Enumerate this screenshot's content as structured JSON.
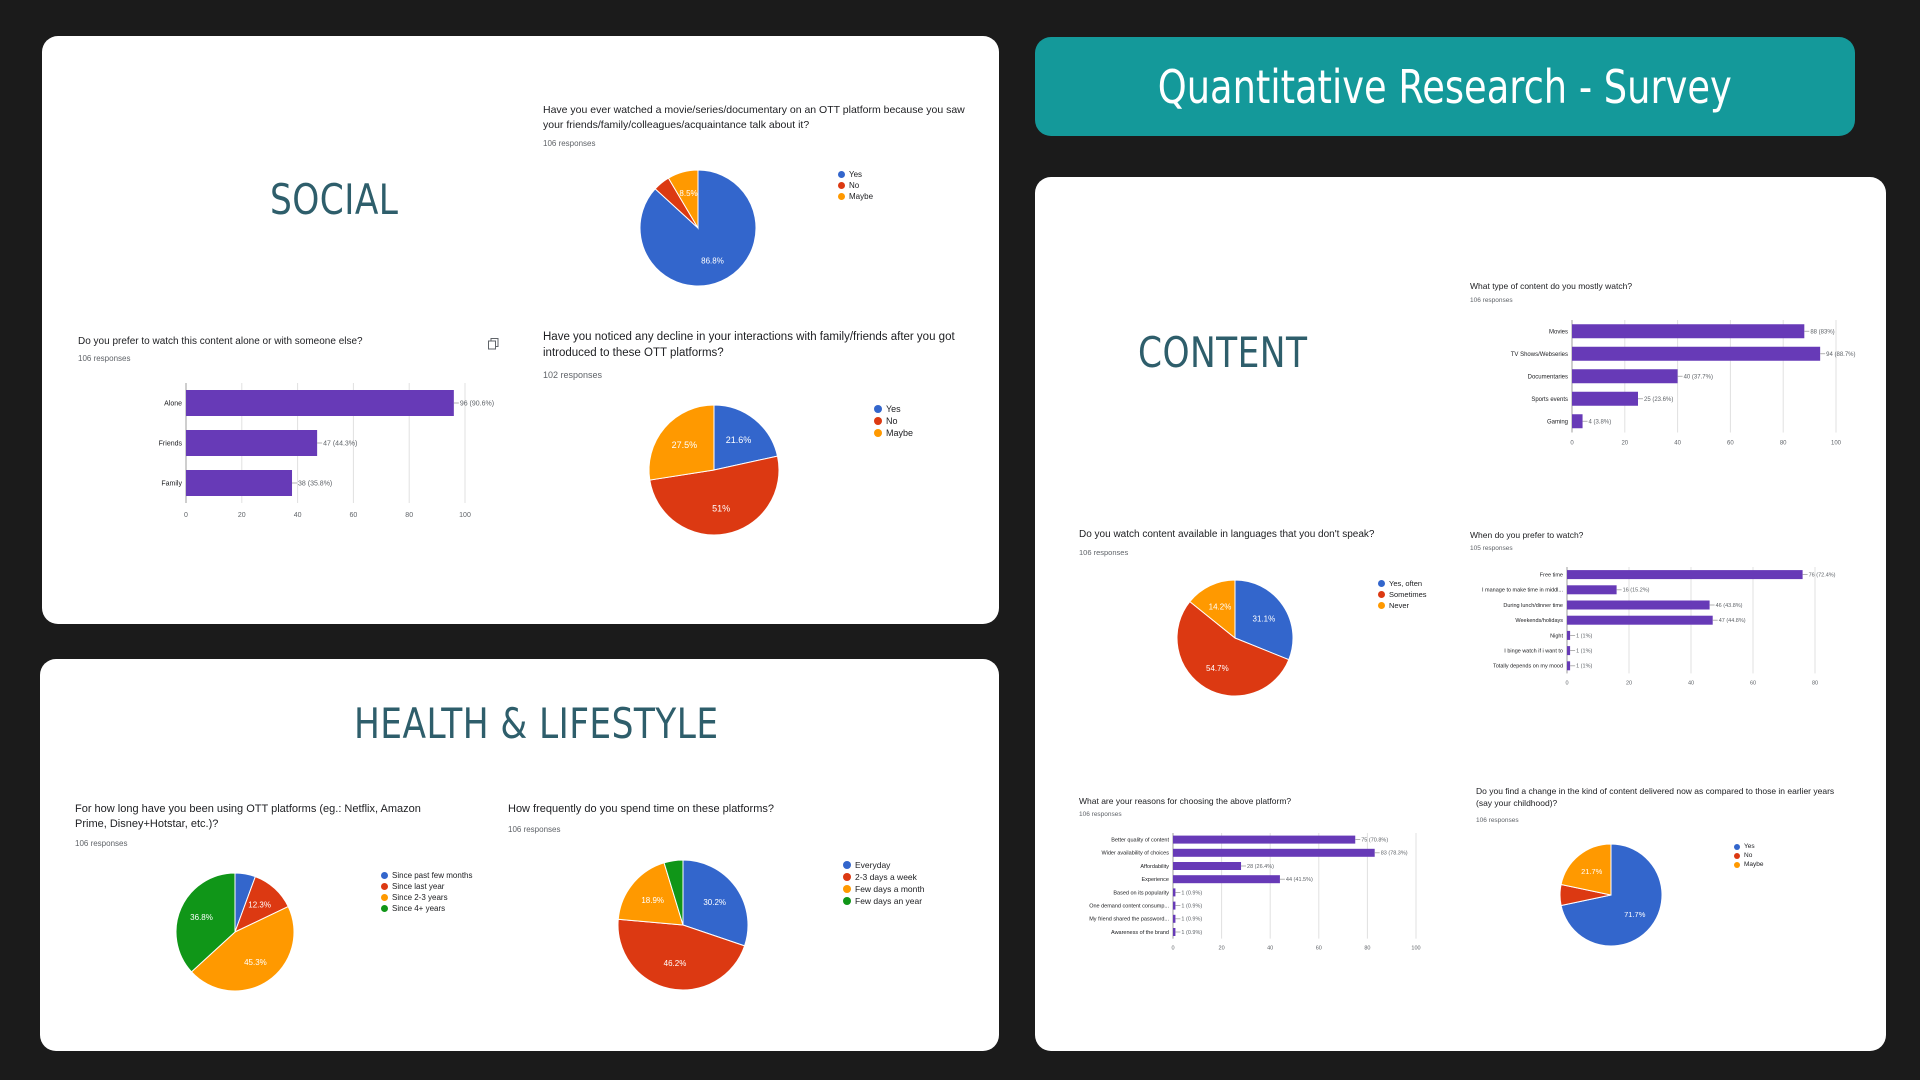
{
  "banner": {
    "title": "Quantitative Research - Survey",
    "color": "#14999a"
  },
  "sections": {
    "social": "SOCIAL",
    "health": "HEALTH & LIFESTYLE",
    "content": "CONTENT"
  },
  "colors": {
    "blue": "#3366cc",
    "red": "#dc3912",
    "orange": "#ff9900",
    "green": "#109618",
    "purple": "#673ab7",
    "title": "#2e5e6b"
  },
  "icons": {
    "copy": "copy-icon"
  },
  "questions": {
    "q1": {
      "text": "Have you ever watched a movie/series/documentary on an OTT platform because you saw your friends/family/colleagues/acquaintance talk about it?",
      "responses": "106 responses"
    },
    "q2": {
      "text": "Do you prefer to watch this content alone or with someone else?",
      "responses": "106 responses"
    },
    "q3": {
      "text": "Have you noticed any decline in your interactions with family/friends after you got introduced to these OTT platforms?",
      "responses": "102 responses"
    },
    "q4": {
      "text": "For how long have you been using OTT platforms (eg.: Netflix, Amazon Prime, Disney+Hotstar, etc.)?",
      "responses": "106 responses"
    },
    "q5": {
      "text": "How frequently do you spend time on these platforms?",
      "responses": "106 responses"
    },
    "q6": {
      "text": "What type of content do you mostly watch?",
      "responses": "106 responses"
    },
    "q7": {
      "text": "Do you watch content available in languages that you don't speak?",
      "responses": "106 responses"
    },
    "q8": {
      "text": "When do you prefer to watch?",
      "responses": "105 responses"
    },
    "q9": {
      "text": "What are your reasons for choosing the above platform?",
      "responses": "106 responses"
    },
    "q10": {
      "text": "Do you find a change in the kind of content delivered now as compared to those in earlier years (say your childhood)?",
      "responses": "106 responses"
    }
  },
  "chart_data": [
    {
      "id": "q1",
      "type": "pie",
      "title": "Have you ever watched a movie/series/documentary on an OTT platform because you saw your friends/family/colleagues/acquaintance talk about it?",
      "labels": [
        "Yes",
        "No",
        "Maybe"
      ],
      "values": [
        86.8,
        4.7,
        8.5
      ],
      "data_labels": [
        "86.8%",
        "",
        "8.5%"
      ],
      "colors": [
        "#3366cc",
        "#dc3912",
        "#ff9900"
      ]
    },
    {
      "id": "q2",
      "type": "bar",
      "orientation": "horizontal",
      "title": "Do you prefer to watch this content alone or with someone else?",
      "categories": [
        "Alone",
        "Friends",
        "Family"
      ],
      "values": [
        96,
        47,
        38
      ],
      "data_labels": [
        "96 (90.6%)",
        "47 (44.3%)",
        "38 (35.8%)"
      ],
      "xlim": [
        0,
        100
      ],
      "xticks": [
        "0",
        "20",
        "40",
        "60",
        "80",
        "100"
      ]
    },
    {
      "id": "q3",
      "type": "pie",
      "title": "Have you noticed any decline in your interactions with family/friends after you got introduced to these OTT platforms?",
      "labels": [
        "Yes",
        "No",
        "Maybe"
      ],
      "values": [
        21.6,
        51,
        27.5
      ],
      "data_labels": [
        "21.6%",
        "51%",
        "27.5%"
      ],
      "colors": [
        "#3366cc",
        "#dc3912",
        "#ff9900"
      ]
    },
    {
      "id": "q4",
      "type": "pie",
      "title": "For how long have you been using OTT platforms (eg.: Netflix, Amazon Prime, Disney+Hotstar, etc.)?",
      "labels": [
        "Since past few months",
        "Since last year",
        "Since 2-3 years",
        "Since 4+ years"
      ],
      "values": [
        5.6,
        12.3,
        45.3,
        36.8
      ],
      "data_labels": [
        "",
        "12.3%",
        "45.3%",
        "36.8%"
      ],
      "colors": [
        "#3366cc",
        "#dc3912",
        "#ff9900",
        "#109618"
      ]
    },
    {
      "id": "q5",
      "type": "pie",
      "title": "How frequently do you spend time on these platforms?",
      "labels": [
        "Everyday",
        "2-3 days a week",
        "Few days a month",
        "Few days an year"
      ],
      "values": [
        30.2,
        46.2,
        18.9,
        4.7
      ],
      "data_labels": [
        "30.2%",
        "46.2%",
        "18.9%",
        ""
      ],
      "colors": [
        "#3366cc",
        "#dc3912",
        "#ff9900",
        "#109618"
      ]
    },
    {
      "id": "q6",
      "type": "bar",
      "orientation": "horizontal",
      "title": "What type of content do you mostly watch?",
      "categories": [
        "Movies",
        "TV Shows/Webseries",
        "Documentaries",
        "Sports events",
        "Gaming"
      ],
      "values": [
        88,
        94,
        40,
        25,
        4
      ],
      "data_labels": [
        "88 (83%)",
        "94 (88.7%)",
        "40 (37.7%)",
        "25 (23.6%)",
        "4 (3.8%)"
      ],
      "xlim": [
        0,
        100
      ],
      "xticks": [
        "0",
        "20",
        "40",
        "60",
        "80",
        "100"
      ]
    },
    {
      "id": "q7",
      "type": "pie",
      "title": "Do you watch content available in languages that you don't speak?",
      "labels": [
        "Yes, often",
        "Sometimes",
        "Never"
      ],
      "values": [
        31.1,
        54.7,
        14.2
      ],
      "data_labels": [
        "31.1%",
        "54.7%",
        "14.2%"
      ],
      "colors": [
        "#3366cc",
        "#dc3912",
        "#ff9900"
      ]
    },
    {
      "id": "q8",
      "type": "bar",
      "orientation": "horizontal",
      "title": "When do you prefer to watch?",
      "categories": [
        "Free time",
        "I manage to make time in middl...",
        "During lunch/dinner time",
        "Weekends/holidays",
        "Night",
        "I binge watch if i want to",
        "Totally depends on my mood"
      ],
      "values": [
        76,
        16,
        46,
        47,
        1,
        1,
        1
      ],
      "data_labels": [
        "76 (72.4%)",
        "16 (15.2%)",
        "46 (43.8%)",
        "47 (44.8%)",
        "1 (1%)",
        "1 (1%)",
        "1 (1%)"
      ],
      "xlim": [
        0,
        80
      ],
      "xticks": [
        "0",
        "20",
        "40",
        "60",
        "80"
      ]
    },
    {
      "id": "q9",
      "type": "bar",
      "orientation": "horizontal",
      "title": "What are your reasons for choosing the above platform?",
      "categories": [
        "Better quality of content",
        "Wider availability of choices",
        "Affordability",
        "Experience",
        "Based on its popularity",
        "One demand content consump...",
        "My friend shared the password...",
        "Awareness of the brand"
      ],
      "values": [
        75,
        83,
        28,
        44,
        1,
        1,
        1,
        1
      ],
      "data_labels": [
        "75 (70.8%)",
        "83 (78.3%)",
        "28 (26.4%)",
        "44 (41.5%)",
        "1 (0.9%)",
        "1 (0.9%)",
        "1 (0.9%)",
        "1 (0.9%)"
      ],
      "xlim": [
        0,
        100
      ],
      "xticks": [
        "0",
        "20",
        "40",
        "60",
        "80",
        "100"
      ]
    },
    {
      "id": "q10",
      "type": "pie",
      "title": "Do you find a change in the kind of content delivered now as compared to those in earlier years (say your childhood)?",
      "labels": [
        "Yes",
        "No",
        "Maybe"
      ],
      "values": [
        71.7,
        6.6,
        21.7
      ],
      "data_labels": [
        "71.7%",
        "",
        "21.7%"
      ],
      "colors": [
        "#3366cc",
        "#dc3912",
        "#ff9900"
      ]
    }
  ]
}
